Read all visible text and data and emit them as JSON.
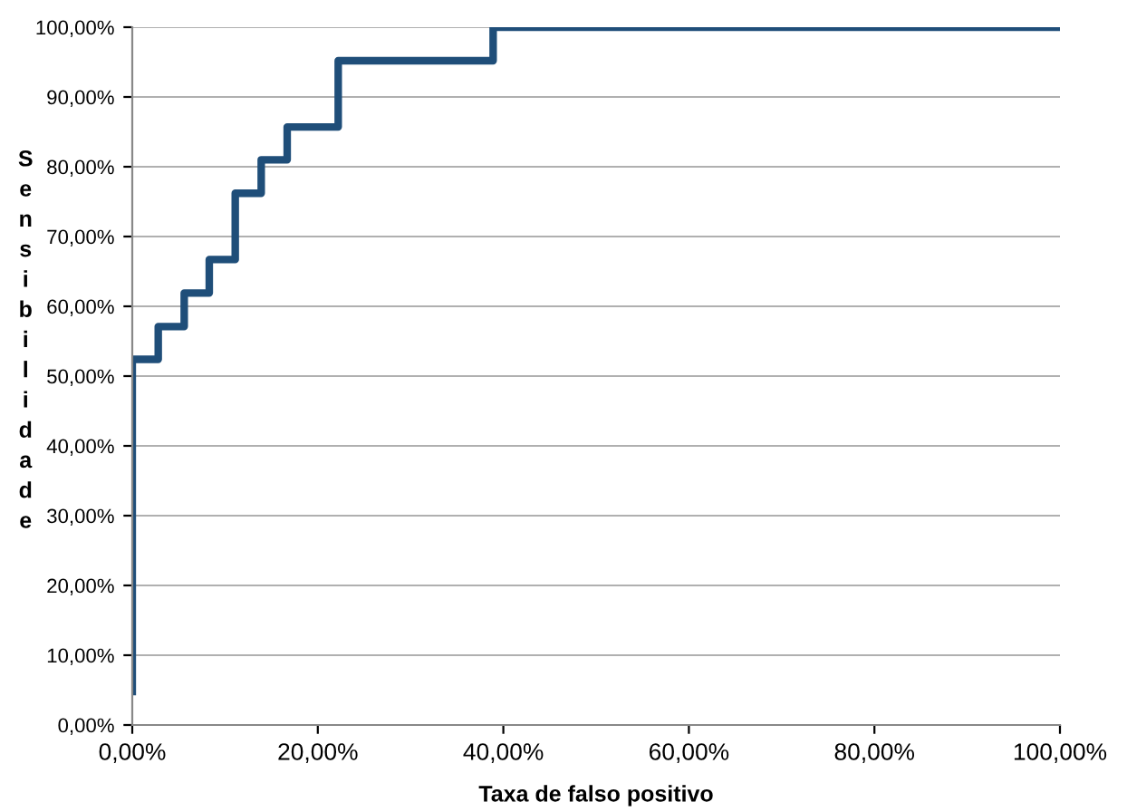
{
  "chart_data": {
    "type": "step",
    "xlabel": "Taxa de falso positivo",
    "ylabel": "Sensibilidade",
    "x": [
      0,
      0,
      2.8,
      5.6,
      8.3,
      11.1,
      13.9,
      16.7,
      22.2,
      38.9,
      100
    ],
    "series": [
      {
        "color": "#1f4e79",
        "values": [
          4.8,
          52.4,
          57.1,
          61.9,
          66.7,
          76.2,
          81.0,
          85.7,
          95.2,
          100,
          100
        ]
      }
    ],
    "xlim": [
      0,
      100
    ],
    "ylim": [
      0,
      100
    ],
    "xticks": [
      {
        "value": 0,
        "label": "0,00%"
      },
      {
        "value": 20,
        "label": "20,00%"
      },
      {
        "value": 40,
        "label": "40,00%"
      },
      {
        "value": 60,
        "label": "60,00%"
      },
      {
        "value": 80,
        "label": "80,00%"
      },
      {
        "value": 100,
        "label": "100,00%"
      }
    ],
    "yticks": [
      {
        "value": 0,
        "label": "0,00%"
      },
      {
        "value": 10,
        "label": "10,00%"
      },
      {
        "value": 20,
        "label": "20,00%"
      },
      {
        "value": 30,
        "label": "30,00%"
      },
      {
        "value": 40,
        "label": "40,00%"
      },
      {
        "value": 50,
        "label": "50,00%"
      },
      {
        "value": 60,
        "label": "60,00%"
      },
      {
        "value": 70,
        "label": "70,00%"
      },
      {
        "value": 80,
        "label": "80,00%"
      },
      {
        "value": 90,
        "label": "90,00%"
      },
      {
        "value": 100,
        "label": "100,00%"
      }
    ],
    "grid": "y",
    "legend": false,
    "line_style": "solid"
  }
}
